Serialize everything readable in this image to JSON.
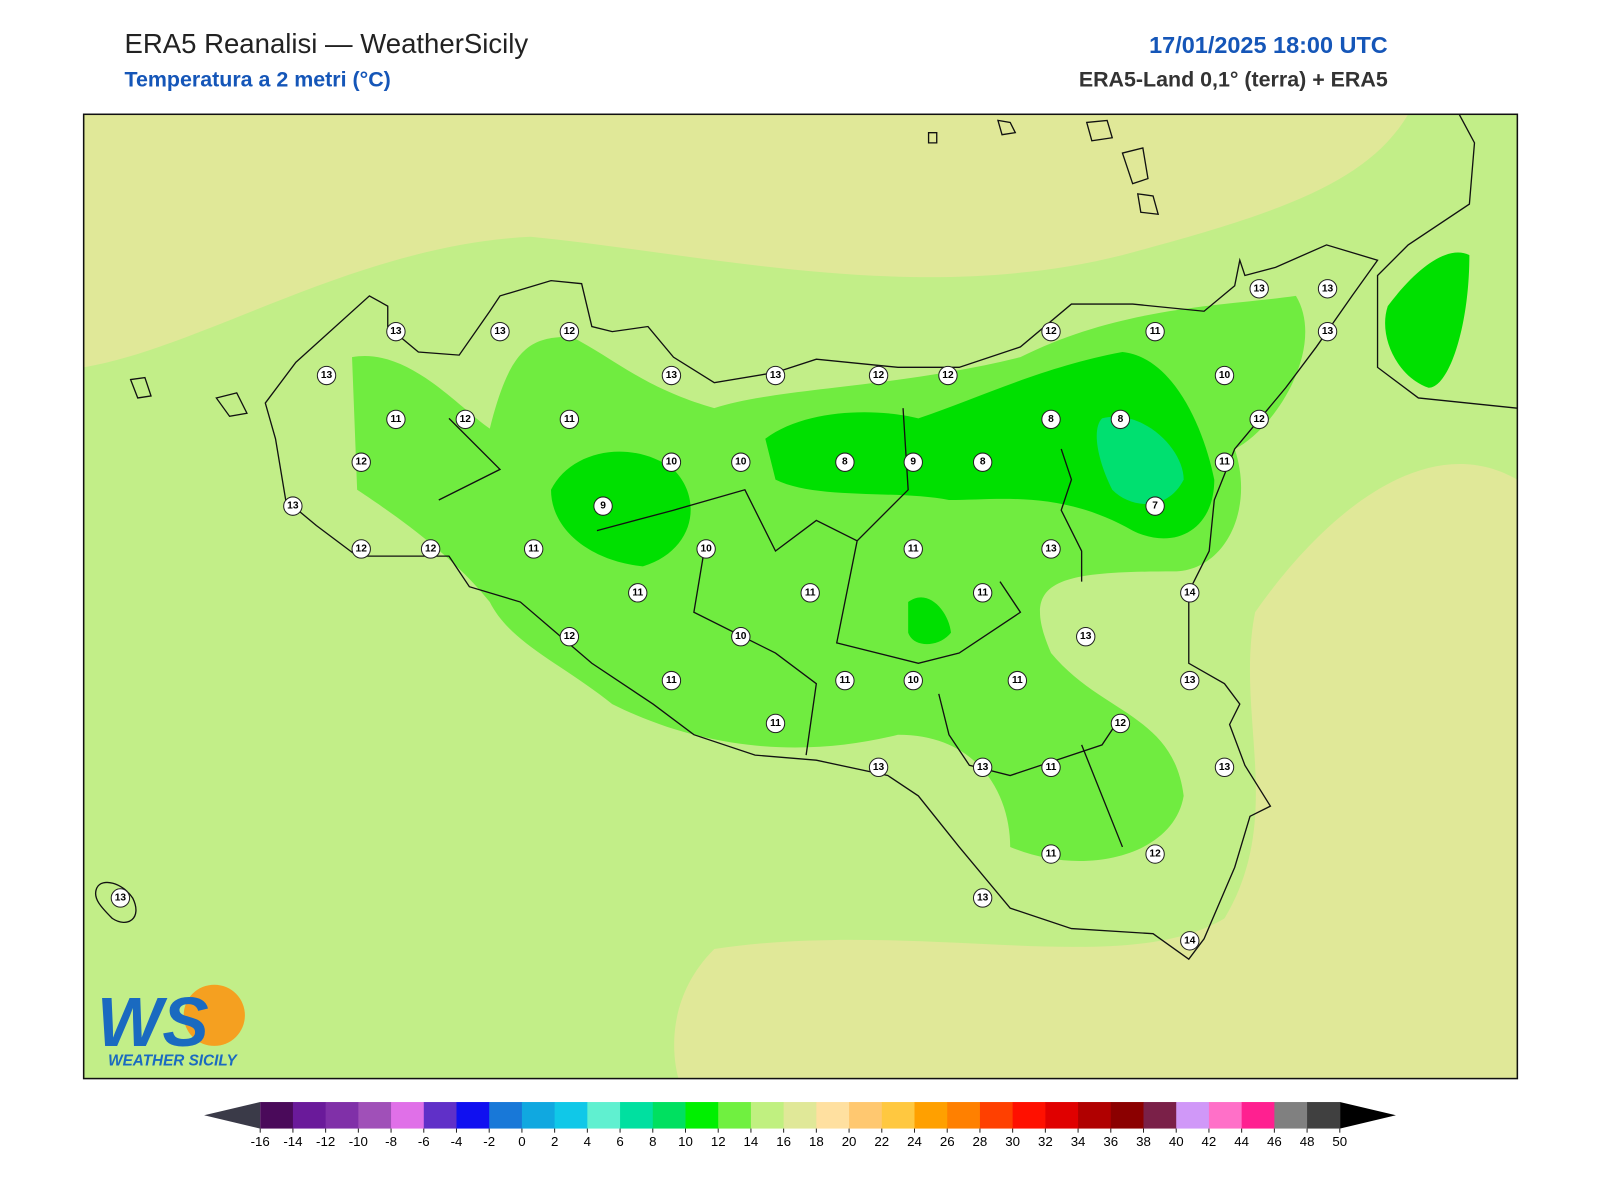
{
  "header": {
    "title": "ERA5 Reanalisi — WeatherSicily",
    "subtitle": "Temperatura a 2 metri (°C)",
    "datetime": "17/01/2025 18:00 UTC",
    "source": "ERA5-Land 0,1° (terra) + ERA5"
  },
  "map": {
    "stations": [
      13,
      13,
      12,
      13,
      13,
      13,
      12,
      12,
      12,
      11,
      13,
      13,
      13,
      10,
      11,
      12,
      11,
      8,
      8,
      12,
      12,
      10,
      10,
      8,
      9,
      8,
      11,
      13,
      9,
      7,
      12,
      12,
      11,
      10,
      11,
      13,
      11,
      11,
      11,
      14,
      12,
      10,
      13,
      11,
      11,
      10,
      11,
      13,
      11,
      12,
      13,
      13,
      11,
      13,
      11,
      12,
      13,
      13,
      14
    ]
  },
  "colorbar": {
    "ticks": [
      -16,
      -14,
      -12,
      -10,
      -8,
      -6,
      -4,
      -2,
      0,
      2,
      4,
      6,
      8,
      10,
      12,
      14,
      16,
      18,
      20,
      22,
      24,
      26,
      28,
      30,
      32,
      34,
      36,
      38,
      40,
      42,
      44,
      46,
      48,
      50
    ],
    "colors": [
      "#4a0a5a",
      "#6a1a9a",
      "#8030a8",
      "#a050b8",
      "#e070e8",
      "#6030c8",
      "#1010f0",
      "#1878d8",
      "#10a8e0",
      "#10c8e8",
      "#60f0d0",
      "#00e0a0",
      "#00e060",
      "#00f000",
      "#70f040",
      "#c0f080",
      "#e0e898",
      "#ffe0a0",
      "#ffc870",
      "#ffc840",
      "#ffa000",
      "#ff8000",
      "#ff4000",
      "#ff1000",
      "#e00000",
      "#b00000",
      "#8b0000",
      "#7a2048",
      "#d098f8",
      "#ff70c8",
      "#ff2090",
      "#808080",
      "#404040"
    ],
    "under_color": "#3a3a48",
    "over_color": "#000000"
  },
  "logo": {
    "initials": "WS",
    "name": "WEATHER SICILY"
  }
}
